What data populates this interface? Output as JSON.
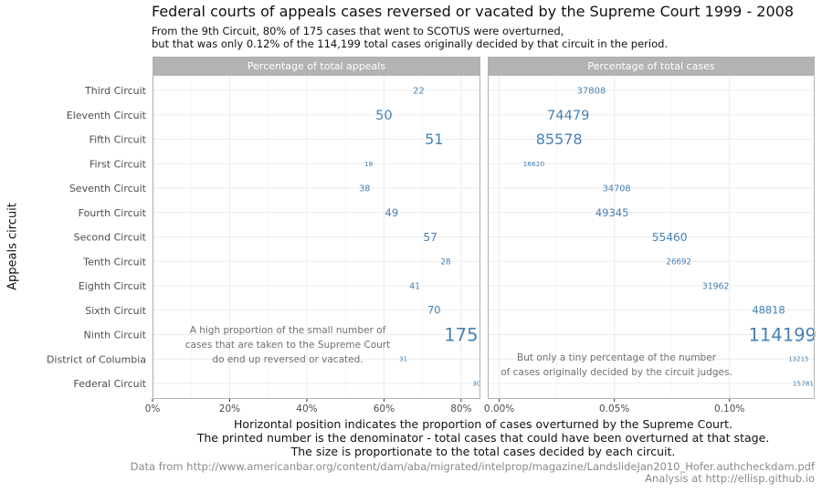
{
  "title": "Federal courts of appeals cases reversed or vacated by the Supreme Court 1999 - 2008",
  "subtitle": [
    "From the 9th Circuit, 80% of 175 cases that went to SCOTUS were overturned,",
    "but that was only 0.12% of the 114,199 total cases originally decided by that circuit in the period."
  ],
  "ylabel": "Appeals circuit",
  "caption": [
    "Horizontal position indicates the proportion of cases overturned by the Supreme Court.",
    "The printed number is the denominator - total cases that could have been overturned at that stage.",
    "The size is proportionate to the total cases decided by each circuit."
  ],
  "source": [
    "Data from http://www.americanbar.org/content/dam/aba/migrated/intelprop/magazine/LandslideJan2010_Hofer.authcheckdam.pdf",
    "Analysis at http://ellisp.github.io"
  ],
  "colors": {
    "label": "#4682b4",
    "strip": "#b3b3b3",
    "grid": "#ebebeb",
    "panel_border": "#b3b3b3",
    "annotation": "#707070"
  },
  "chart_data": {
    "type": "scatter",
    "categories": [
      "Third Circuit",
      "Eleventh Circuit",
      "Fifth Circuit",
      "First Circuit",
      "Seventh Circuit",
      "Fourth Circuit",
      "Second Circuit",
      "Tenth Circuit",
      "Eighth Circuit",
      "Sixth Circuit",
      "Ninth Circuit",
      "District of Columbia",
      "Federal Circuit"
    ],
    "totals": [
      37808,
      74479,
      85578,
      16620,
      34708,
      49345,
      55460,
      26692,
      31962,
      48818,
      114199,
      13215,
      15781
    ],
    "panels": [
      {
        "name": "Percentage of total appeals",
        "xlim": [
          0,
          0.85
        ],
        "ticks": [
          0,
          0.2,
          0.4,
          0.6,
          0.8
        ],
        "tick_labels": [
          "0%",
          "20%",
          "40%",
          "60%",
          "80%"
        ],
        "x": [
          0.69,
          0.6,
          0.73,
          0.56,
          0.55,
          0.62,
          0.72,
          0.76,
          0.68,
          0.73,
          0.8,
          0.65,
          0.84
        ],
        "labels": [
          "22",
          "50",
          "51",
          "18",
          "38",
          "49",
          "57",
          "28",
          "41",
          "70",
          "175",
          "31",
          "30"
        ],
        "annotation": [
          "A high proportion of the small number of",
          "cases that are taken to the Supreme Court",
          "do end up reversed or vacated."
        ]
      },
      {
        "name": "Percentage of total cases",
        "xlim": [
          -5e-05,
          0.00137
        ],
        "ticks": [
          0,
          0.0005,
          0.001
        ],
        "tick_labels": [
          "0.00%",
          "0.05%",
          "0.10%"
        ],
        "x": [
          0.0004,
          0.0003,
          0.00026,
          0.00015,
          0.00051,
          0.00049,
          0.00074,
          0.00078,
          0.00094,
          0.00117,
          0.00123,
          0.0013,
          0.00132
        ],
        "labels": [
          "37808",
          "74479",
          "85578",
          "16620",
          "34708",
          "49345",
          "55460",
          "26692",
          "31962",
          "48818",
          "114199",
          "13215",
          "15781"
        ],
        "annotation": [
          "But only a tiny percentage of the number",
          "of cases originally decided by the circuit judges."
        ]
      }
    ]
  }
}
